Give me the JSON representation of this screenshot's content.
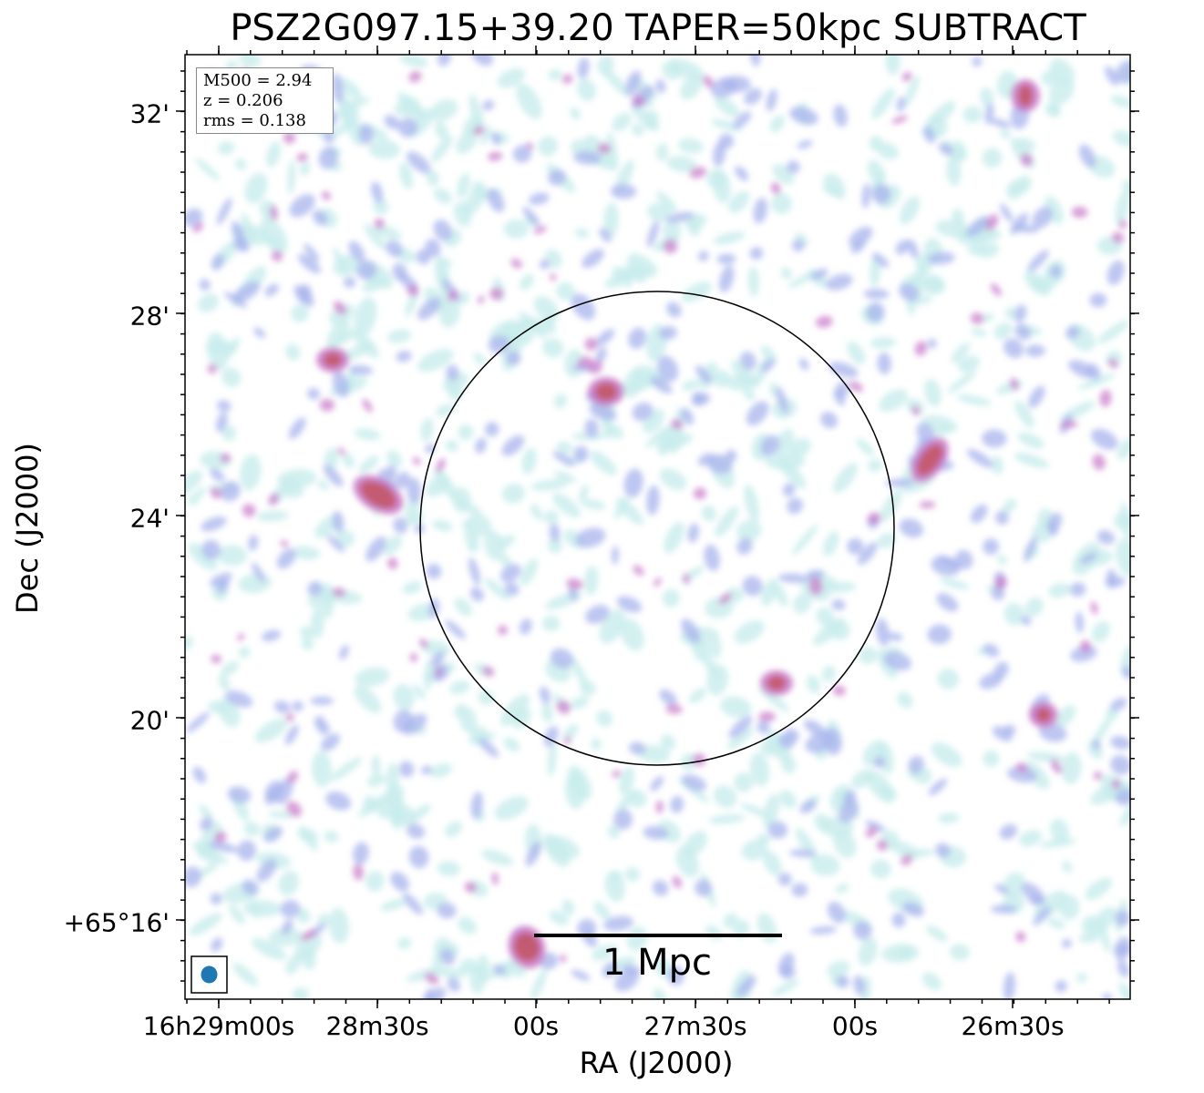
{
  "chart_data": {
    "type": "heatmap",
    "title": "PSZ2G097.15+39.20 TAPER=50kpc SUBTRACT",
    "xlabel": "RA (J2000)",
    "ylabel": "Dec (J2000)",
    "x_ticks": [
      "16h29m00s",
      "28m30s",
      "00s",
      "27m30s",
      "00s",
      "26m30s"
    ],
    "y_ticks": [
      "32'",
      "28'",
      "24'",
      "20'",
      "+65°16'"
    ],
    "info": {
      "m500": "M500 = 2.94",
      "z": "z = 0.206",
      "rms": "rms = 0.138"
    },
    "scale_bar": "1 Mpc",
    "colors": {
      "low": "#c8ecec",
      "mid": "#a8b4ec",
      "high": "#c878c8",
      "peak": "#c04848",
      "beam": "#1f77b4"
    }
  }
}
